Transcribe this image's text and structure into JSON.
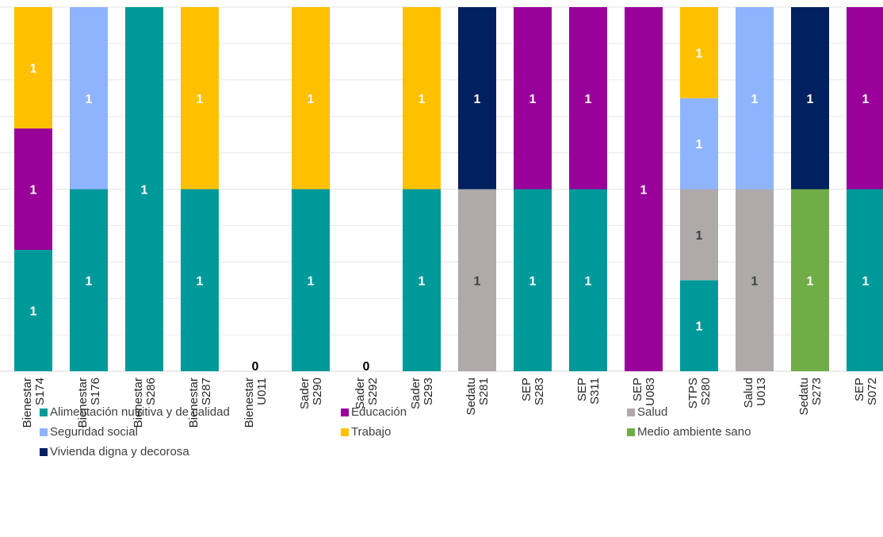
{
  "chart_data": {
    "type": "bar",
    "stacked": true,
    "normalized": true,
    "grid": true,
    "legend_position": "bottom",
    "categories": [
      [
        "Bienestar",
        "S174"
      ],
      [
        "Bienestar",
        "S176"
      ],
      [
        "Bienestar",
        "S286"
      ],
      [
        "Bienestar",
        "S287"
      ],
      [
        "Bienestar",
        "U011"
      ],
      [
        "Sader",
        "S290"
      ],
      [
        "Sader",
        "S292"
      ],
      [
        "Sader",
        "S293"
      ],
      [
        "Sedatu",
        "S281"
      ],
      [
        "SEP",
        "S283"
      ],
      [
        "SEP",
        "S311"
      ],
      [
        "SEP",
        "U083"
      ],
      [
        "STPS",
        "S280"
      ],
      [
        "Salud",
        "U013"
      ],
      [
        "Sedatu",
        "S273"
      ],
      [
        "SEP",
        "S072"
      ]
    ],
    "series": [
      {
        "name": "Alimentación nutritiva y de calidad",
        "color": "#009999",
        "values": [
          1,
          1,
          1,
          1,
          0,
          1,
          0,
          1,
          0,
          1,
          1,
          0,
          1,
          0,
          0,
          1
        ]
      },
      {
        "name": "Educación",
        "color": "#990099",
        "values": [
          1,
          0,
          0,
          0,
          0,
          0,
          0,
          0,
          0,
          1,
          1,
          1,
          0,
          0,
          0,
          1
        ]
      },
      {
        "name": "Salud",
        "color": "#AEAAAA",
        "values": [
          0,
          0,
          0,
          0,
          0,
          0,
          0,
          0,
          1,
          0,
          0,
          0,
          1,
          1,
          0,
          0
        ]
      },
      {
        "name": "Seguridad social",
        "color": "#8FB4FF",
        "values": [
          0,
          1,
          0,
          0,
          0,
          0,
          0,
          0,
          0,
          0,
          0,
          0,
          1,
          1,
          0,
          0
        ]
      },
      {
        "name": "Trabajo",
        "color": "#FFC000",
        "values": [
          1,
          0,
          0,
          1,
          0,
          1,
          0,
          1,
          0,
          0,
          0,
          0,
          1,
          0,
          0,
          0
        ]
      },
      {
        "name": "Medio ambiente sano",
        "color": "#70AD47",
        "values": [
          0,
          0,
          0,
          0,
          0,
          0,
          0,
          0,
          0,
          0,
          0,
          0,
          0,
          0,
          1,
          0
        ]
      },
      {
        "name": "Vivienda digna y decorosa",
        "color": "#002060",
        "values": [
          0,
          0,
          0,
          0,
          0,
          0,
          0,
          0,
          1,
          0,
          0,
          0,
          0,
          0,
          1,
          0
        ]
      }
    ],
    "zero_label": "0"
  }
}
